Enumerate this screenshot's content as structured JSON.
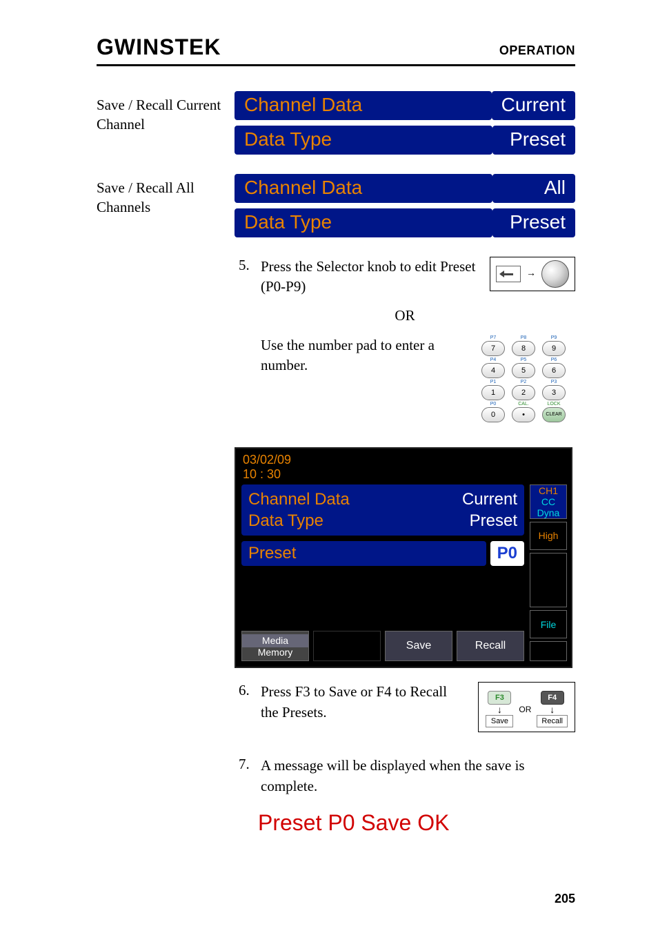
{
  "header": {
    "logo": "GWINSTEK",
    "right": "OPERATION"
  },
  "sections": {
    "saveRecallCurrent": {
      "label": "Save / Recall Current Channel",
      "rows": [
        {
          "k": "Channel Data",
          "v": "Current"
        },
        {
          "k": "Data Type",
          "v": "Preset"
        }
      ]
    },
    "saveRecallAll": {
      "label": "Save / Recall All Channels",
      "rows": [
        {
          "k": "Channel Data",
          "v": "All"
        },
        {
          "k": "Data Type",
          "v": "Preset"
        }
      ]
    }
  },
  "step5": {
    "num": "5.",
    "text1": "Press the Selector knob to edit Preset (P0-P9)",
    "or": "OR",
    "text2": "Use the number pad to enter a number."
  },
  "keypad": {
    "sup": [
      [
        "P7",
        "P8",
        "P9"
      ],
      [
        "P4",
        "P5",
        "P6"
      ],
      [
        "P1",
        "P2",
        "P3"
      ],
      [
        "P0",
        "CAL.",
        "LOCK"
      ]
    ],
    "keys": [
      [
        "7",
        "8",
        "9"
      ],
      [
        "4",
        "5",
        "6"
      ],
      [
        "1",
        "2",
        "3"
      ],
      [
        "0",
        "•",
        "CLEAR"
      ]
    ]
  },
  "lcd": {
    "date": "03/02/09",
    "time": "10 : 30",
    "data": [
      {
        "k": "Channel Data",
        "v": "Current"
      },
      {
        "k": "Data Type",
        "v": "Preset"
      }
    ],
    "preset": {
      "label": "Preset",
      "value": "P0"
    },
    "side": {
      "ch": "CH1",
      "cc": "CC",
      "dyna": "Dyna",
      "high": "High",
      "file": "File"
    },
    "softkeys": {
      "media_top": "Media",
      "media_bot": "Memory",
      "save": "Save",
      "recall": "Recall"
    }
  },
  "step6": {
    "num": "6.",
    "text": "Press F3 to Save or F4 to Recall the Presets.",
    "f3": "F3",
    "f4": "F4",
    "or": "OR",
    "save": "Save",
    "recall": "Recall"
  },
  "step7": {
    "num": "7.",
    "text": "A message will be displayed when the save is complete."
  },
  "message": "Preset P0 Save OK",
  "pageNum": "205",
  "colors": {
    "panel_blue": "#001688",
    "orange": "#e98300",
    "red": "#d10000",
    "cyan": "#00d8e0",
    "link_blue": "#1b61b5"
  }
}
